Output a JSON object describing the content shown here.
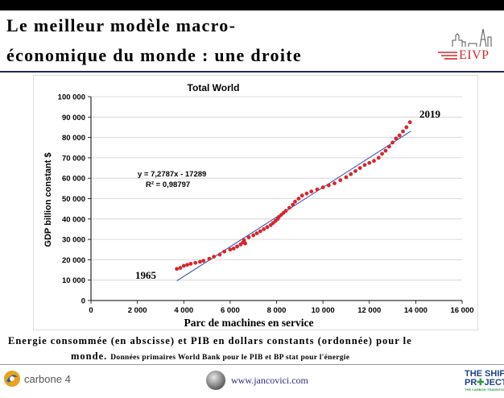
{
  "slide": {
    "title_line1": "Le meilleur modèle macro-",
    "title_line2": "économique du monde : une droite",
    "logo_text": "EIVP",
    "caption_line1": "Energie consommée (en abscisse) et PIB en dollars constants (ordonnée) pour le",
    "caption_line2_main": "monde.",
    "caption_line2_small": "Données primaires World Bank pour le PIB et BP stat pour l'énergie",
    "footer_left": "carbone 4",
    "footer_url": "www.jancovici.com",
    "footer_right_line1": "THE SHIFT",
    "footer_right_line2_a": "PR",
    "footer_right_line2_b": "JECT",
    "footer_right_line3": "THE CARBON TRANSITION THINK TANK"
  },
  "colors": {
    "points": "#d8262b",
    "trendline": "#2f4bb0",
    "grid": "#cfcfcf",
    "title_rule": "#1f2a5a",
    "eivp_red": "#d8272d"
  },
  "chart_data": {
    "type": "scatter",
    "title": "Total World",
    "ylabel": "GDP billion constant $",
    "xlabel": "Parc de machines en service",
    "xlim": [
      0,
      16000
    ],
    "ylim": [
      0,
      100000
    ],
    "x_ticks": [
      "0",
      "2 000",
      "4 000",
      "6 000",
      "8 000",
      "10 000",
      "12 000",
      "14 000",
      "16 000"
    ],
    "y_ticks": [
      "0",
      "10 000",
      "20 000",
      "30 000",
      "40 000",
      "50 000",
      "60 000",
      "70 000",
      "80 000",
      "90 000",
      "100 000"
    ],
    "x_tick_values": [
      0,
      2000,
      4000,
      6000,
      8000,
      10000,
      12000,
      14000,
      16000
    ],
    "y_tick_values": [
      0,
      10000,
      20000,
      30000,
      40000,
      50000,
      60000,
      70000,
      80000,
      90000,
      100000
    ],
    "grid": true,
    "equation": "y = 7,2787x - 17289",
    "r_squared": "R² = 0,98797",
    "trendline": {
      "slope": 7.2787,
      "intercept": -17289,
      "x_from": 3700,
      "x_to": 13800
    },
    "annotations": [
      {
        "text": "1965",
        "x": 2100,
        "y": 12000
      },
      {
        "text": "2019",
        "x": 14100,
        "y": 89000
      }
    ],
    "series": [
      {
        "x": [
          3700,
          3850,
          4000,
          4150,
          4300,
          4500,
          4700,
          4850,
          5100,
          5300,
          5550,
          5750,
          6000,
          6150,
          6300,
          6450,
          6550,
          6600,
          6650,
          6800,
          7000,
          7150,
          7300,
          7450,
          7600,
          7750,
          7850,
          7950,
          8050,
          8100,
          8200,
          8300,
          8400,
          8550,
          8700,
          8800,
          8950,
          9100,
          9300,
          9500,
          9750,
          10000,
          10250,
          10500,
          10750,
          11000,
          11200,
          11400,
          11600,
          11800,
          12000,
          12200,
          12400,
          12550,
          12700,
          12850,
          13000,
          13150,
          13300,
          13450,
          13600,
          13750
        ],
        "y": [
          15500,
          16000,
          17000,
          17500,
          18000,
          18500,
          19000,
          19500,
          20500,
          21500,
          22500,
          24000,
          25000,
          25500,
          26500,
          27500,
          28500,
          29500,
          28000,
          31000,
          32000,
          33000,
          34000,
          35000,
          36000,
          37000,
          38000,
          39000,
          40000,
          41000,
          42000,
          43000,
          44000,
          45500,
          47000,
          48500,
          50000,
          51500,
          52500,
          53500,
          54500,
          55500,
          56500,
          57500,
          59000,
          60500,
          62000,
          63500,
          65000,
          66500,
          67500,
          68500,
          70000,
          72000,
          73500,
          75500,
          77500,
          79500,
          81000,
          83000,
          85000,
          87500
        ]
      }
    ]
  }
}
